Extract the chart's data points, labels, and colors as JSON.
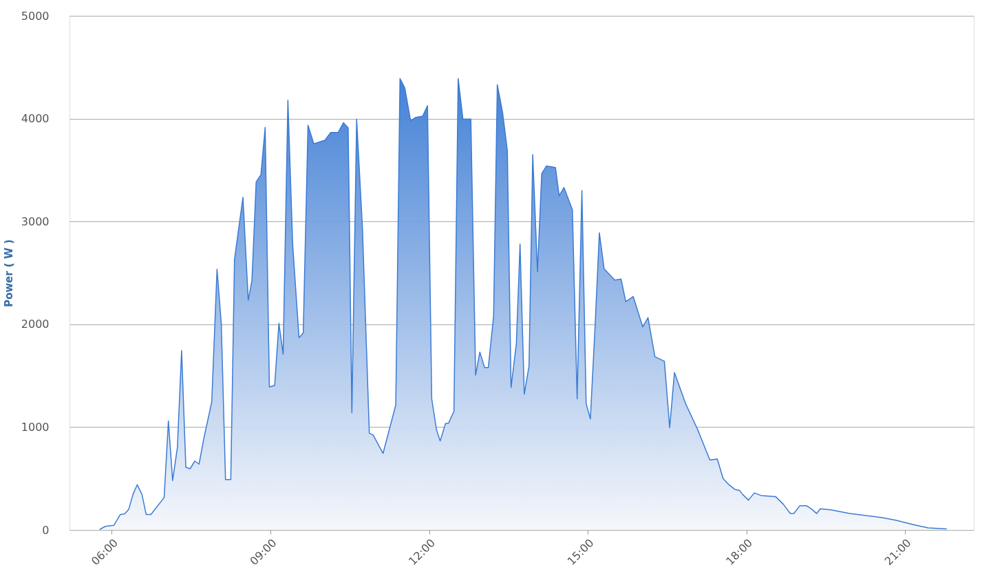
{
  "chart_data": {
    "type": "area",
    "ylabel": "Power ( W )",
    "xlim": [
      5.2,
      22.3
    ],
    "xticks": [
      {
        "value": 6,
        "label": "06:00"
      },
      {
        "value": 9,
        "label": "09:00"
      },
      {
        "value": 12,
        "label": "12:00"
      },
      {
        "value": 15,
        "label": "15:00"
      },
      {
        "value": 18,
        "label": "18:00"
      },
      {
        "value": 21,
        "label": "21:00"
      }
    ],
    "ylim": [
      0,
      5000
    ],
    "yticks": [
      0,
      1000,
      2000,
      3000,
      4000,
      5000
    ],
    "grid": "y",
    "series": [
      {
        "color": "#3b7bd4",
        "x": [
          5.77,
          5.88,
          6.04,
          6.16,
          6.24,
          6.32,
          6.4,
          6.48,
          6.57,
          6.65,
          6.74,
          6.99,
          7.07,
          7.15,
          7.24,
          7.32,
          7.4,
          7.48,
          7.57,
          7.65,
          7.74,
          7.89,
          7.99,
          8.07,
          8.15,
          8.25,
          8.32,
          8.48,
          8.58,
          8.65,
          8.73,
          8.82,
          8.9,
          8.98,
          9.08,
          9.16,
          9.24,
          9.33,
          9.42,
          9.54,
          9.62,
          9.71,
          9.82,
          10.03,
          10.14,
          10.28,
          10.38,
          10.47,
          10.54,
          10.63,
          10.74,
          10.87,
          10.94,
          11.13,
          11.37,
          11.45,
          11.54,
          11.65,
          11.74,
          11.88,
          11.97,
          12.05,
          12.14,
          12.21,
          12.31,
          12.37,
          12.47,
          12.55,
          12.64,
          12.79,
          12.88,
          12.96,
          13.05,
          13.12,
          13.22,
          13.29,
          13.39,
          13.48,
          13.55,
          13.65,
          13.72,
          13.8,
          13.89,
          13.96,
          14.05,
          14.13,
          14.22,
          14.39,
          14.46,
          14.55,
          14.71,
          14.8,
          14.89,
          14.97,
          15.05,
          15.14,
          15.22,
          15.31,
          15.51,
          15.63,
          15.72,
          15.86,
          16.04,
          16.14,
          16.27,
          16.45,
          16.55,
          16.64,
          16.85,
          17.08,
          17.31,
          17.45,
          17.56,
          17.67,
          17.78,
          17.87,
          17.93,
          18.04,
          18.15,
          18.28,
          18.55,
          18.7,
          18.83,
          18.9,
          19.01,
          19.14,
          19.23,
          19.33,
          19.4,
          19.6,
          19.95,
          20.56,
          20.82,
          21.17,
          21.44,
          21.79
        ],
        "values": [
          5,
          35,
          45,
          150,
          155,
          200,
          345,
          440,
          345,
          150,
          150,
          315,
          1060,
          480,
          800,
          1745,
          610,
          595,
          670,
          640,
          890,
          1245,
          2535,
          2010,
          490,
          490,
          2630,
          3235,
          2235,
          2425,
          3385,
          3455,
          3915,
          1390,
          1405,
          2010,
          1710,
          4180,
          2780,
          1870,
          1915,
          3935,
          3755,
          3790,
          3865,
          3865,
          3960,
          3910,
          1140,
          3995,
          2935,
          940,
          925,
          745,
          1215,
          4390,
          4300,
          3980,
          4010,
          4025,
          4125,
          1275,
          975,
          865,
          1035,
          1040,
          1155,
          4390,
          3995,
          3995,
          1505,
          1730,
          1580,
          1580,
          2080,
          4330,
          4060,
          3690,
          1385,
          1810,
          2780,
          1320,
          1595,
          3650,
          2510,
          3465,
          3540,
          3525,
          3250,
          3330,
          3115,
          1275,
          3300,
          1230,
          1080,
          1990,
          2890,
          2540,
          2430,
          2440,
          2220,
          2270,
          1975,
          2065,
          1685,
          1640,
          995,
          1530,
          1230,
          975,
          680,
          690,
          500,
          440,
          395,
          385,
          345,
          290,
          360,
          335,
          325,
          250,
          160,
          160,
          235,
          235,
          205,
          160,
          205,
          195,
          160,
          120,
          95,
          50,
          20,
          10
        ]
      }
    ]
  }
}
